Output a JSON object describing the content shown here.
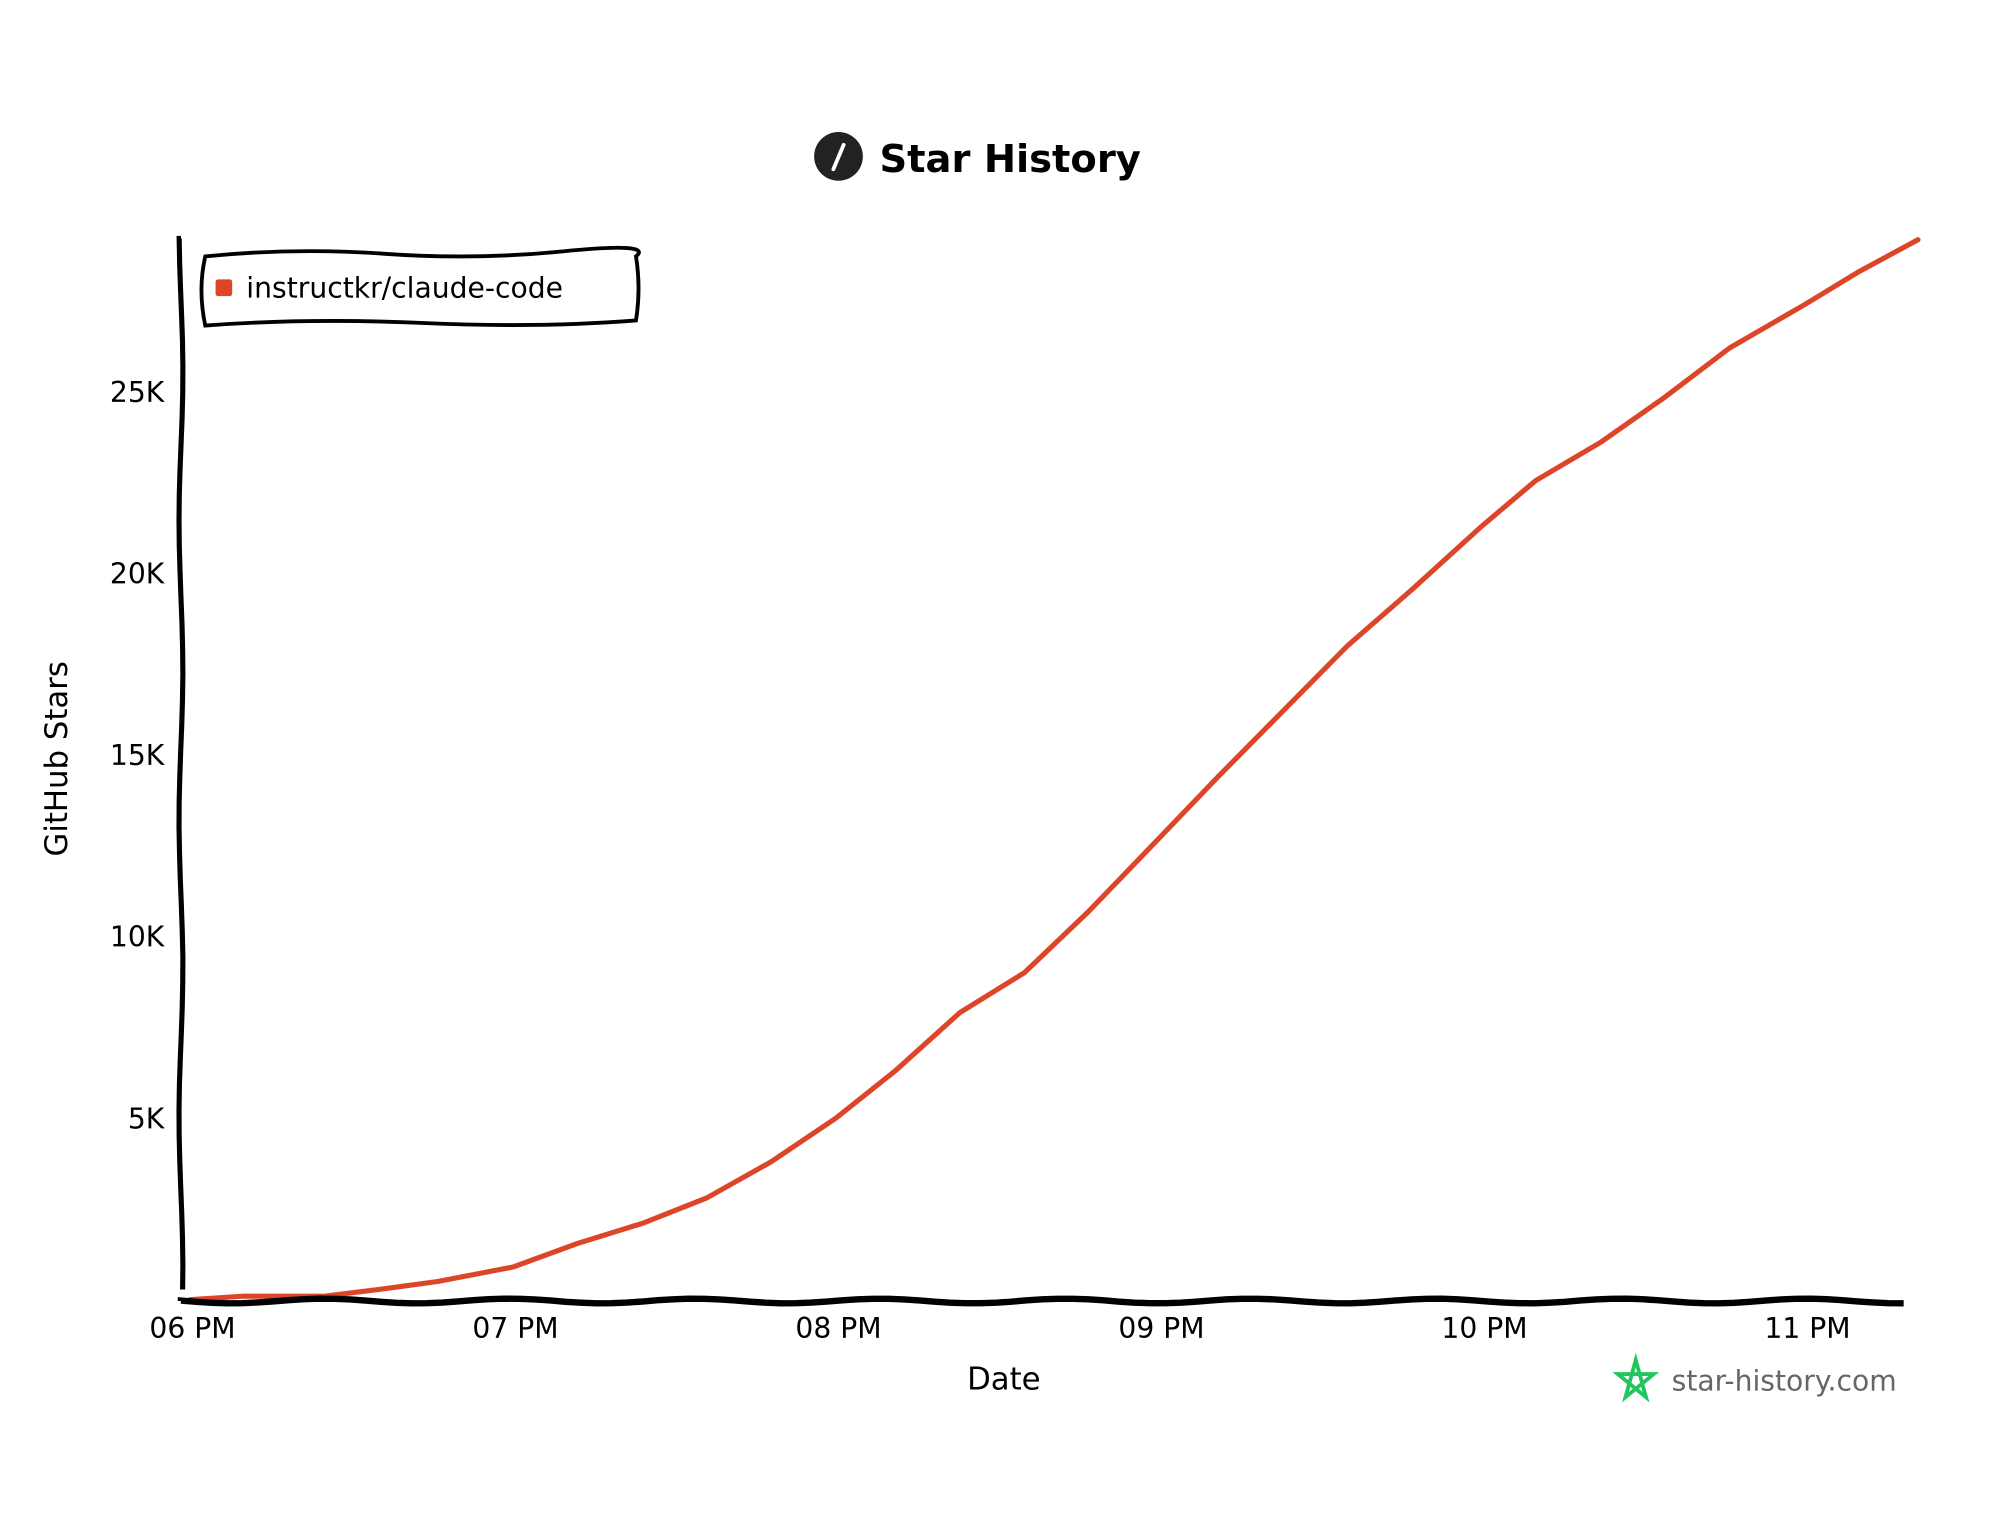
{
  "chart_data": {
    "type": "line",
    "title": "Star History",
    "xlabel": "Date",
    "ylabel": "GitHub Stars",
    "x_ticks": [
      "06 PM",
      "07 PM",
      "08 PM",
      "09 PM",
      "10 PM",
      "11 PM"
    ],
    "y_ticks": [
      "5K",
      "10K",
      "15K",
      "20K",
      "25K"
    ],
    "y_tick_values": [
      5000,
      10000,
      15000,
      20000,
      25000
    ],
    "xlim": [
      "18:00",
      "23:20"
    ],
    "ylim": [
      0,
      29200
    ],
    "grid": false,
    "legend_position": "top-left",
    "series": [
      {
        "name": "instructkr/claude-code",
        "color": "#dd4528",
        "x": [
          "18:00",
          "18:10",
          "18:25",
          "18:36",
          "18:46",
          "19:00",
          "19:12",
          "19:24",
          "19:36",
          "19:48",
          "20:00",
          "20:11",
          "20:23",
          "20:35",
          "20:47",
          "21:00",
          "21:11",
          "21:23",
          "21:35",
          "21:47",
          "22:00",
          "22:10",
          "22:22",
          "22:34",
          "22:46",
          "23:00",
          "23:10",
          "23:21"
        ],
        "y": [
          0,
          100,
          100,
          300,
          500,
          900,
          1550,
          2100,
          2800,
          3800,
          5000,
          6300,
          7900,
          9000,
          10700,
          12700,
          14400,
          16200,
          18000,
          19550,
          21300,
          22550,
          23600,
          24850,
          26200,
          27400,
          28300,
          29180
        ]
      }
    ]
  },
  "watermark": {
    "text": "star-history.com",
    "color": "#22c55e"
  }
}
